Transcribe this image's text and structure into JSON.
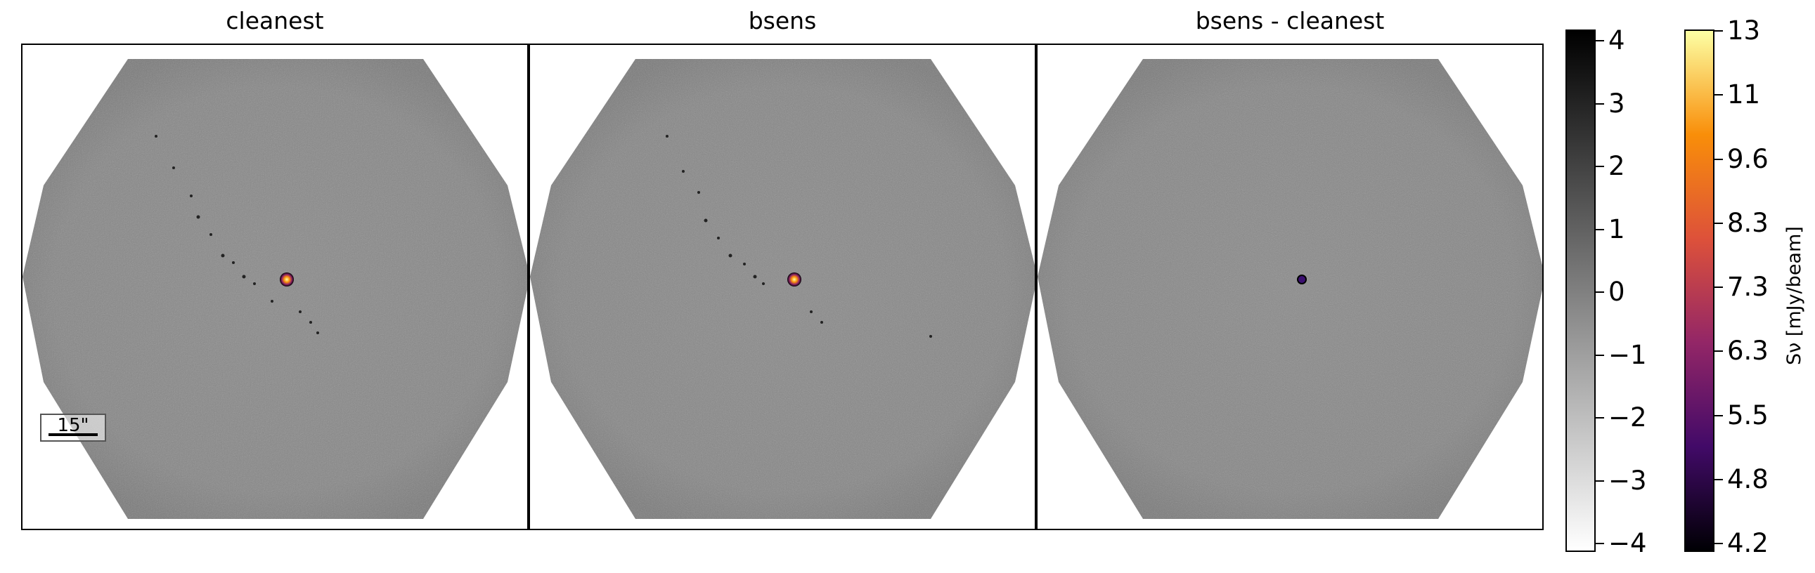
{
  "panels": [
    {
      "title": "cleanest",
      "colormap": "gray-on-inferno-source"
    },
    {
      "title": "bsens",
      "colormap": "gray-on-inferno-source"
    },
    {
      "title": "bsens - cleanest",
      "colormap": "gray-on-inferno-source"
    }
  ],
  "scalebar": {
    "label": "15\""
  },
  "colorbar_gray": {
    "colors": [
      "#000000",
      "#ffffff"
    ],
    "ticks": [
      "4",
      "3",
      "2",
      "1",
      "0",
      "−1",
      "−2",
      "−3",
      "−4"
    ]
  },
  "colorbar_inferno": {
    "label": "Sν [mJy/beam]",
    "colors": [
      "#fcffa4",
      "#f98e09",
      "#dd513a",
      "#932667",
      "#420a68",
      "#000004"
    ],
    "ticks": [
      "13",
      "11",
      "9.6",
      "8.3",
      "7.3",
      "6.3",
      "5.5",
      "4.8",
      "4.2"
    ]
  }
}
